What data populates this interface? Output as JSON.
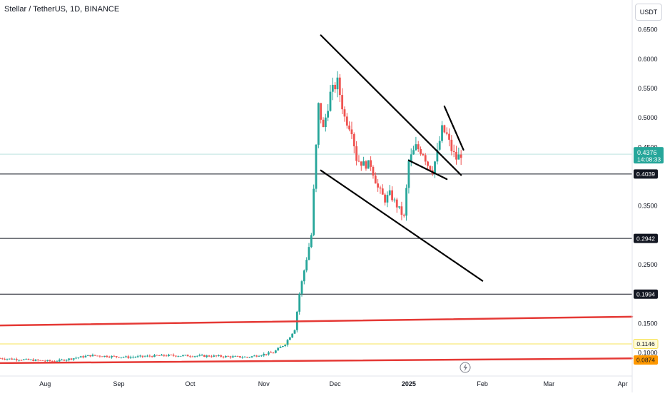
{
  "header": {
    "symbol_title": "Stellar / TetherUS, 1D, BINANCE",
    "currency": "USDT"
  },
  "chart_data": {
    "type": "candlestick",
    "y_ticks": [
      "0.6500",
      "0.6000",
      "0.5500",
      "0.5000",
      "0.4500",
      "0.3500",
      "0.2500",
      "0.1500",
      "0.1000"
    ],
    "y_tick_values": [
      0.65,
      0.6,
      0.55,
      0.5,
      0.45,
      0.35,
      0.25,
      0.15,
      0.1
    ],
    "x_ticks": [
      "Aug",
      "Sep",
      "Oct",
      "Nov",
      "Dec",
      "2025",
      "Feb",
      "Mar",
      "Apr"
    ],
    "x_tick_dates": [
      "2024-08-01",
      "2024-09-01",
      "2024-10-01",
      "2024-11-01",
      "2024-12-01",
      "2025-01-01",
      "2025-02-01",
      "2025-03-01",
      "2025-04-01"
    ],
    "x_range": [
      "2024-07-13",
      "2025-04-05"
    ],
    "y_range": [
      0.06,
      0.7
    ],
    "current_price": {
      "value": "0.4376",
      "countdown": "14:08:33",
      "color": "#26a69a"
    },
    "price_labels": [
      {
        "value": "0.4039",
        "style": "dark"
      },
      {
        "value": "0.2942",
        "style": "dark"
      },
      {
        "value": "0.1994",
        "style": "dark"
      },
      {
        "value": "0.1146",
        "style": "yellow"
      },
      {
        "value": "0.0874",
        "style": "orange"
      }
    ],
    "horizontal_lines": [
      {
        "y": 0.4039,
        "color": "#131722"
      },
      {
        "y": 0.2942,
        "color": "#131722"
      },
      {
        "y": 0.1994,
        "color": "#131722"
      },
      {
        "y": 0.1146,
        "color": "#f7e35a"
      }
    ],
    "trend_lines": [
      {
        "name": "upper-channel",
        "from": [
          "2024-11-25",
          0.64
        ],
        "to": [
          "2025-01-23",
          0.402
        ],
        "color": "#000000"
      },
      {
        "name": "lower-channel",
        "from": [
          "2024-11-25",
          0.41
        ],
        "to": [
          "2025-02-01",
          0.222
        ],
        "color": "#000000"
      },
      {
        "name": "wedge-upper",
        "from": [
          "2025-01-16",
          0.519
        ],
        "to": [
          "2025-01-24",
          0.445
        ],
        "color": "#000000"
      },
      {
        "name": "wedge-lower",
        "from": [
          "2025-01-01",
          0.427
        ],
        "to": [
          "2025-01-17",
          0.395
        ],
        "color": "#000000"
      },
      {
        "name": "support-red-upper",
        "from": [
          "2024-07-13",
          0.146
        ],
        "to": [
          "2025-04-05",
          0.161
        ],
        "color": "#e53935"
      },
      {
        "name": "support-red-lower",
        "from": [
          "2024-07-13",
          0.082
        ],
        "to": [
          "2025-04-05",
          0.09
        ],
        "color": "#e53935"
      }
    ],
    "anchors": [
      [
        "2024-07-13",
        0.09
      ],
      [
        "2024-08-05",
        0.085
      ],
      [
        "2024-08-20",
        0.095
      ],
      [
        "2024-09-05",
        0.092
      ],
      [
        "2024-09-20",
        0.095
      ],
      [
        "2024-10-10",
        0.094
      ],
      [
        "2024-10-25",
        0.092
      ],
      [
        "2024-11-05",
        0.1
      ],
      [
        "2024-11-10",
        0.115
      ],
      [
        "2024-11-14",
        0.14
      ],
      [
        "2024-11-16",
        0.2
      ],
      [
        "2024-11-19",
        0.26
      ],
      [
        "2024-11-21",
        0.3
      ],
      [
        "2024-11-23",
        0.45
      ],
      [
        "2024-11-24",
        0.52
      ],
      [
        "2024-11-26",
        0.48
      ],
      [
        "2024-11-29",
        0.54
      ],
      [
        "2024-12-02",
        0.56
      ],
      [
        "2024-12-05",
        0.5
      ],
      [
        "2024-12-08",
        0.48
      ],
      [
        "2024-12-10",
        0.43
      ],
      [
        "2024-12-13",
        0.42
      ],
      [
        "2024-12-16",
        0.42
      ],
      [
        "2024-12-19",
        0.38
      ],
      [
        "2024-12-22",
        0.36
      ],
      [
        "2024-12-24",
        0.37
      ],
      [
        "2024-12-27",
        0.35
      ],
      [
        "2024-12-30",
        0.33
      ],
      [
        "2025-01-01",
        0.425
      ],
      [
        "2025-01-04",
        0.45
      ],
      [
        "2025-01-07",
        0.44
      ],
      [
        "2025-01-09",
        0.42
      ],
      [
        "2025-01-11",
        0.41
      ],
      [
        "2025-01-13",
        0.44
      ],
      [
        "2025-01-15",
        0.48
      ],
      [
        "2025-01-17",
        0.47
      ],
      [
        "2025-01-19",
        0.445
      ],
      [
        "2025-01-21",
        0.43
      ],
      [
        "2025-01-23",
        0.4376
      ]
    ]
  }
}
